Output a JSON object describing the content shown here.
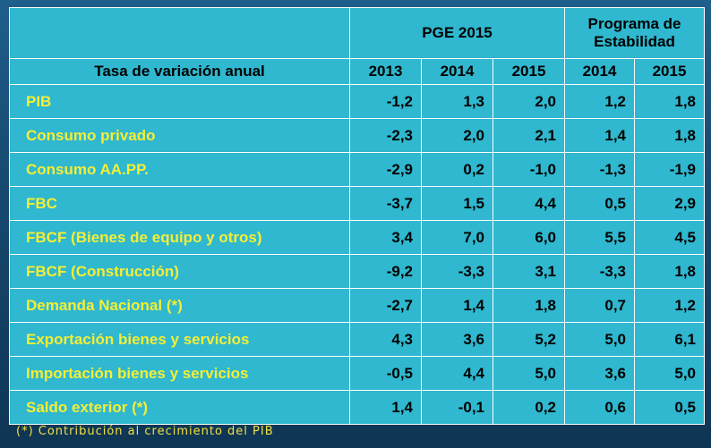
{
  "header": {
    "group_pge": "PGE 2015",
    "group_estab": "Programa de Estabilidad",
    "row_title": "Tasa de variación anual",
    "years": [
      "2013",
      "2014",
      "2015",
      "2014",
      "2015"
    ]
  },
  "rows": [
    {
      "label": "PIB",
      "values": [
        "-1,2",
        "1,3",
        "2,0",
        "1,2",
        "1,8"
      ]
    },
    {
      "label": "Consumo privado",
      "values": [
        "-2,3",
        "2,0",
        "2,1",
        "1,4",
        "1,8"
      ]
    },
    {
      "label": "Consumo  AA.PP.",
      "values": [
        "-2,9",
        "0,2",
        "-1,0",
        "-1,3",
        "-1,9"
      ]
    },
    {
      "label": "FBC",
      "values": [
        "-3,7",
        "1,5",
        "4,4",
        "0,5",
        "2,9"
      ]
    },
    {
      "label": "FBCF (Bienes de equipo y otros)",
      "values": [
        "3,4",
        "7,0",
        "6,0",
        "5,5",
        "4,5"
      ]
    },
    {
      "label": "FBCF (Construcción)",
      "values": [
        "-9,2",
        "-3,3",
        "3,1",
        "-3,3",
        "1,8"
      ]
    },
    {
      "label": "Demanda Nacional  (*)",
      "values": [
        "-2,7",
        "1,4",
        "1,8",
        "0,7",
        "1,2"
      ]
    },
    {
      "label": "Exportación bienes y servicios",
      "values": [
        "4,3",
        "3,6",
        "5,2",
        "5,0",
        "6,1"
      ]
    },
    {
      "label": "Importación bienes y servicios",
      "values": [
        "-0,5",
        "4,4",
        "5,0",
        "3,6",
        "5,0"
      ]
    },
    {
      "label": "Saldo exterior  (*)",
      "values": [
        "1,4",
        "-0,1",
        "0,2",
        "0,6",
        "0,5"
      ]
    }
  ],
  "footnote": "(*) Contribución al crecimiento del PIB",
  "colors": {
    "cell_bg": "#2fb8cf",
    "label_text": "#f5ee35",
    "background": "#174a70"
  }
}
